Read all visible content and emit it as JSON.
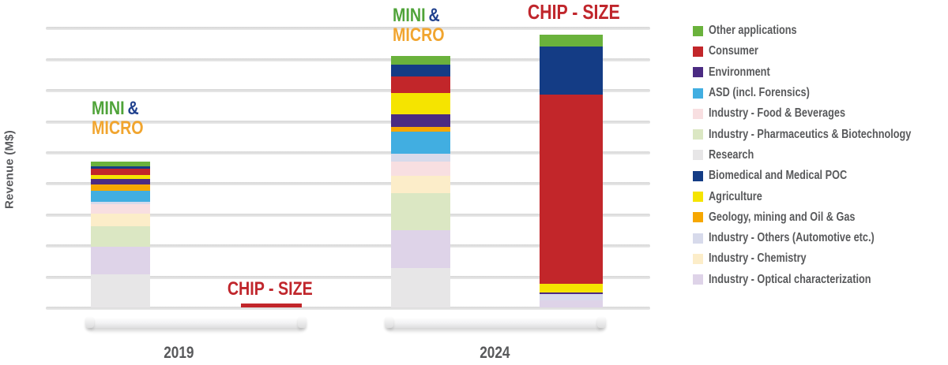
{
  "y_axis": {
    "label": "Revenue (M$)"
  },
  "x_axis": {
    "group_2019": "2019",
    "group_2024": "2024"
  },
  "annotations": {
    "mini_word": "MINI",
    "amp": "&",
    "micro_word": "MICRO",
    "chip_size": "CHIP - SIZE",
    "colors": {
      "mini": "#4fa339",
      "amp": "#20418e",
      "micro": "#f1a52f",
      "chip_size": "#c0262c"
    }
  },
  "legend": {
    "items": [
      {
        "label": "Other applications",
        "color": "#6ab23c"
      },
      {
        "label": "Consumer",
        "color": "#c2262a"
      },
      {
        "label": "Environment",
        "color": "#4b2b82"
      },
      {
        "label": "ASD (incl. Forensics)",
        "color": "#41aee1"
      },
      {
        "label": "Industry - Food & Beverages",
        "color": "#f8dfe1"
      },
      {
        "label": "Industry - Pharmaceutics & Biotechnology",
        "color": "#dbe7c3"
      },
      {
        "label": "Research",
        "color": "#e7e6e7"
      },
      {
        "label": "Biomedical and Medical POC",
        "color": "#143c85"
      },
      {
        "label": "Agriculture",
        "color": "#f5e400"
      },
      {
        "label": "Geology, mining and Oil & Gas",
        "color": "#f6a700"
      },
      {
        "label": "Industry - Others (Automotive etc.)",
        "color": "#d7daeb"
      },
      {
        "label": "Industry - Chemistry",
        "color": "#fcedc9"
      },
      {
        "label": "Industry - Optical characterization",
        "color": "#ded3e8"
      }
    ]
  },
  "chart_data": {
    "type": "bar",
    "stacked": true,
    "title": "",
    "xlabel": "",
    "ylabel": "Revenue (M$)",
    "value_unit": "gridline intervals (y axis shown without numeric tick labels)",
    "ylim": [
      0,
      9
    ],
    "grid": true,
    "legend_position": "right",
    "categories": [
      "2019 MINI & MICRO",
      "2019 CHIP - SIZE",
      "2024 MINI & MICRO",
      "2024 CHIP - SIZE"
    ],
    "bars": [
      {
        "id": "mini-micro-2019",
        "group": "2019",
        "label": "MINI & MICRO",
        "segments_bottom_to_top": [
          {
            "label": "Research",
            "value": 1.06
          },
          {
            "label": "Industry - Optical characterization",
            "value": 0.89
          },
          {
            "label": "Industry - Pharmaceutics & Biotechnology",
            "value": 0.66
          },
          {
            "label": "Industry - Chemistry",
            "value": 0.41
          },
          {
            "label": "Industry - Food & Beverages",
            "value": 0.3
          },
          {
            "label": "Industry - Others (Automotive etc.)",
            "value": 0.08
          },
          {
            "label": "ASD (incl. Forensics)",
            "value": 0.36
          },
          {
            "label": "Geology, mining and Oil & Gas",
            "value": 0.2
          },
          {
            "label": "Environment",
            "value": 0.18
          },
          {
            "label": "Agriculture",
            "value": 0.13
          },
          {
            "label": "Consumer",
            "value": 0.2
          },
          {
            "label": "Biomedical and Medical POC",
            "value": 0.08
          },
          {
            "label": "Other applications",
            "value": 0.15
          }
        ]
      },
      {
        "id": "chip-size-2019",
        "group": "2019",
        "label": "CHIP - SIZE",
        "segments_bottom_to_top": [
          {
            "label": "Consumer",
            "value": 0.13
          }
        ]
      },
      {
        "id": "mini-micro-2024",
        "group": "2024",
        "label": "MINI & MICRO",
        "segments_bottom_to_top": [
          {
            "label": "Research",
            "value": 1.27
          },
          {
            "label": "Industry - Optical characterization",
            "value": 1.22
          },
          {
            "label": "Industry - Pharmaceutics & Biotechnology",
            "value": 1.19
          },
          {
            "label": "Industry - Chemistry",
            "value": 0.56
          },
          {
            "label": "Industry - Food & Beverages",
            "value": 0.46
          },
          {
            "label": "Industry - Others (Automotive etc.)",
            "value": 0.25
          },
          {
            "label": "ASD (incl. Forensics)",
            "value": 0.71
          },
          {
            "label": "Geology, mining and Oil & Gas",
            "value": 0.15
          },
          {
            "label": "Environment",
            "value": 0.41
          },
          {
            "label": "Agriculture",
            "value": 0.68
          },
          {
            "label": "Consumer",
            "value": 0.53
          },
          {
            "label": "Biomedical and Medical POC",
            "value": 0.38
          },
          {
            "label": "Other applications",
            "value": 0.3
          }
        ]
      },
      {
        "id": "chip-size-2024",
        "group": "2024",
        "label": "CHIP - SIZE",
        "segments_bottom_to_top": [
          {
            "label": "Industry - Optical characterization",
            "value": 0.23
          },
          {
            "label": "Industry - Others (Automotive etc.)",
            "value": 0.2
          },
          {
            "label": "Environment",
            "value": 0.05
          },
          {
            "label": "Agriculture",
            "value": 0.28
          },
          {
            "label": "Consumer",
            "value": 6.1
          },
          {
            "label": "Biomedical and Medical POC",
            "value": 1.55
          },
          {
            "label": "Other applications",
            "value": 0.38
          }
        ]
      }
    ]
  }
}
